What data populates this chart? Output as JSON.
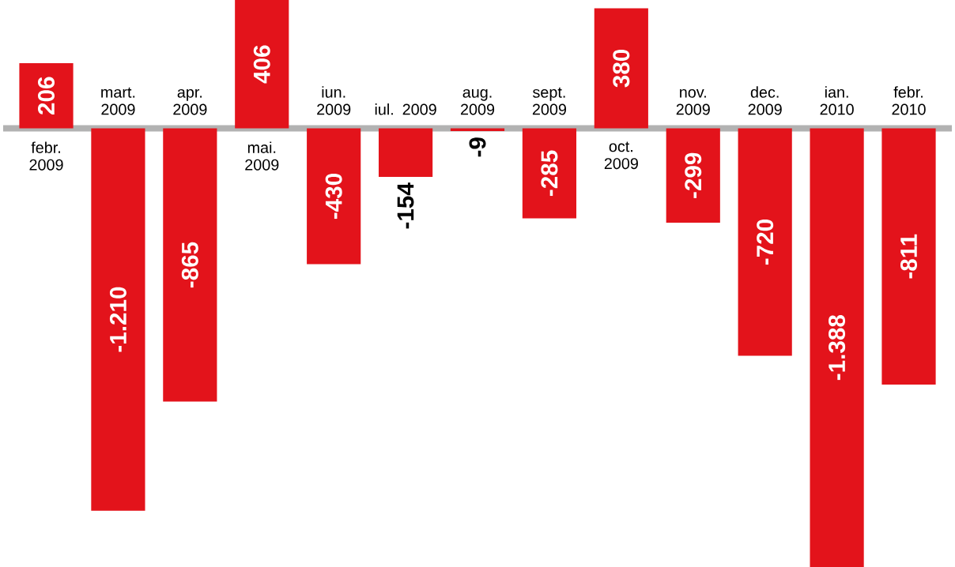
{
  "chart_data": {
    "type": "bar",
    "categories": [
      "febr. 2009",
      "mart. 2009",
      "apr. 2009",
      "mai. 2009",
      "iun. 2009",
      "iul. 2009",
      "aug. 2009",
      "sept. 2009",
      "oct. 2009",
      "nov. 2009",
      "dec. 2009",
      "ian. 2010",
      "febr. 2010"
    ],
    "values": [
      206,
      -1210,
      -865,
      406,
      -430,
      -154,
      -9,
      -285,
      380,
      -299,
      -720,
      -1388,
      -811
    ],
    "value_labels": [
      "206",
      "-1.210",
      "-865",
      "406",
      "-430",
      "-154",
      "-9",
      "-285",
      "380",
      "-299",
      "-720",
      "-1.388",
      "-811"
    ],
    "color": "#e3131b"
  }
}
